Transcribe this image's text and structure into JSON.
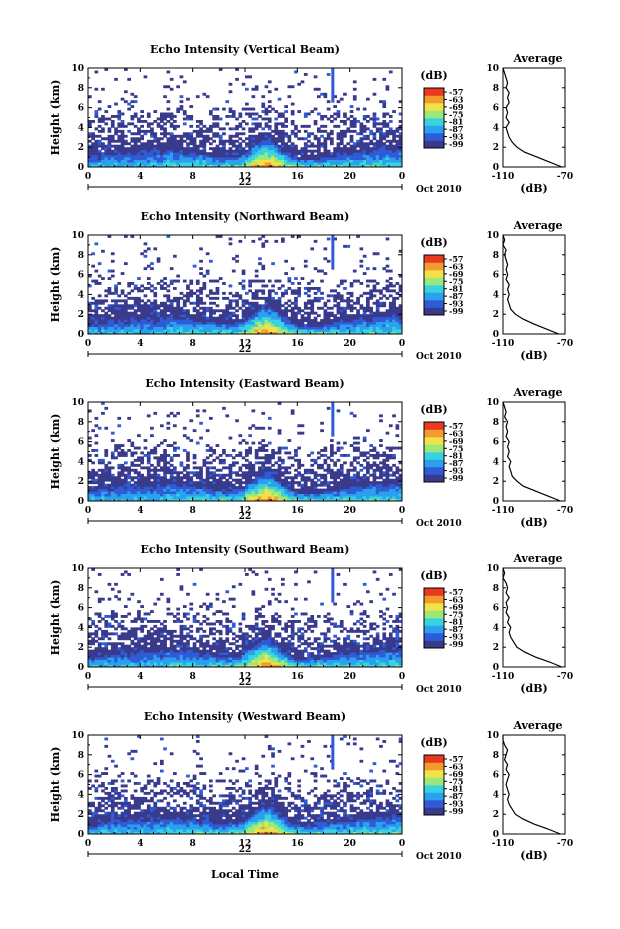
{
  "xlabel_bottom": "Local Time",
  "date_label": "Oct 2010",
  "date_day": "22",
  "avg_title": "Average",
  "avg_xlabel": "(dB)",
  "colorbar_unit": "(dB)",
  "colorbar_ticks": [
    "-57",
    "-63",
    "-69",
    "-75",
    "-81",
    "-87",
    "-93",
    "-99"
  ],
  "colorbar_colors": [
    "#3a3a8c",
    "#2f5bd6",
    "#2aa0ee",
    "#39d3e0",
    "#9be87a",
    "#f2e24a",
    "#f59a2d",
    "#e83a1f"
  ],
  "chart_data": [
    {
      "type": "heatmap",
      "title": "Echo Intensity (Vertical Beam)",
      "ylabel": "Height (km)",
      "xlim": [
        0,
        24
      ],
      "ylim": [
        0,
        10
      ],
      "xticks": [
        "0",
        "4",
        "8",
        "12",
        "16",
        "20",
        "0"
      ],
      "yticks": [
        "0",
        "2",
        "4",
        "6",
        "8",
        "10"
      ],
      "avg_profile": {
        "xlim": [
          -110,
          -70
        ],
        "xticks": [
          "-110",
          "-70"
        ],
        "height": [
          0,
          0.5,
          1,
          1.5,
          2,
          2.5,
          3,
          3.5,
          4,
          4.5,
          5,
          5.5,
          6,
          6.5,
          7,
          7.5,
          8,
          8.5,
          9,
          9.5,
          10
        ],
        "value": [
          -72,
          -80,
          -88,
          -96,
          -101,
          -104,
          -106,
          -107,
          -108,
          -106,
          -108,
          -107,
          -108,
          -106,
          -107,
          -106,
          -108,
          -107,
          -108,
          -109,
          -110
        ]
      }
    },
    {
      "type": "heatmap",
      "title": "Echo Intensity (Northward Beam)",
      "ylabel": "Height (km)",
      "xlim": [
        0,
        24
      ],
      "ylim": [
        0,
        10
      ],
      "xticks": [
        "0",
        "4",
        "8",
        "12",
        "16",
        "20",
        "0"
      ],
      "yticks": [
        "0",
        "2",
        "4",
        "6",
        "8",
        "10"
      ],
      "avg_profile": {
        "xlim": [
          -110,
          -70
        ],
        "xticks": [
          "-110",
          "-70"
        ],
        "height": [
          0,
          0.5,
          1,
          1.5,
          2,
          2.5,
          3,
          3.5,
          4,
          4.5,
          5,
          5.5,
          6,
          6.5,
          7,
          7.5,
          8,
          8.5,
          9,
          9.5,
          10
        ],
        "value": [
          -74,
          -82,
          -90,
          -97,
          -102,
          -105,
          -106,
          -107,
          -106,
          -107,
          -106,
          -108,
          -107,
          -108,
          -107,
          -108,
          -109,
          -108,
          -110,
          -109,
          -110
        ]
      }
    },
    {
      "type": "heatmap",
      "title": "Echo Intensity (Eastward Beam)",
      "ylabel": "Height (km)",
      "xlim": [
        0,
        24
      ],
      "ylim": [
        0,
        10
      ],
      "xticks": [
        "0",
        "4",
        "8",
        "12",
        "16",
        "20",
        "0"
      ],
      "yticks": [
        "0",
        "2",
        "4",
        "6",
        "8",
        "10"
      ],
      "avg_profile": {
        "xlim": [
          -110,
          -70
        ],
        "xticks": [
          "-110",
          "-70"
        ],
        "height": [
          0,
          0.5,
          1,
          1.5,
          2,
          2.5,
          3,
          3.5,
          4,
          4.5,
          5,
          5.5,
          6,
          6.5,
          7,
          7.5,
          8,
          8.5,
          9,
          9.5,
          10
        ],
        "value": [
          -73,
          -81,
          -89,
          -97,
          -101,
          -104,
          -105,
          -106,
          -105,
          -107,
          -106,
          -107,
          -106,
          -108,
          -107,
          -108,
          -107,
          -109,
          -108,
          -109,
          -110
        ]
      }
    },
    {
      "type": "heatmap",
      "title": "Echo Intensity (Southward Beam)",
      "ylabel": "Height (km)",
      "xlim": [
        0,
        24
      ],
      "ylim": [
        0,
        10
      ],
      "xticks": [
        "0",
        "4",
        "8",
        "12",
        "16",
        "20",
        "0"
      ],
      "yticks": [
        "0",
        "2",
        "4",
        "6",
        "8",
        "10"
      ],
      "avg_profile": {
        "xlim": [
          -110,
          -70
        ],
        "xticks": [
          "-110",
          "-70"
        ],
        "height": [
          0,
          0.5,
          1,
          1.5,
          2,
          2.5,
          3,
          3.5,
          4,
          4.5,
          5,
          5.5,
          6,
          6.5,
          7,
          7.5,
          8,
          8.5,
          9,
          9.5,
          10
        ],
        "value": [
          -72,
          -80,
          -89,
          -96,
          -101,
          -103,
          -105,
          -106,
          -105,
          -107,
          -106,
          -108,
          -107,
          -108,
          -106,
          -108,
          -107,
          -108,
          -110,
          -109,
          -110
        ]
      }
    },
    {
      "type": "heatmap",
      "title": "Echo Intensity (Westward Beam)",
      "ylabel": "Height (km)",
      "xlim": [
        0,
        24
      ],
      "ylim": [
        0,
        10
      ],
      "xticks": [
        "0",
        "4",
        "8",
        "12",
        "16",
        "20",
        "0"
      ],
      "yticks": [
        "0",
        "2",
        "4",
        "6",
        "8",
        "10"
      ],
      "avg_profile": {
        "xlim": [
          -110,
          -70
        ],
        "xticks": [
          "-110",
          "-70"
        ],
        "height": [
          0,
          0.5,
          1,
          1.5,
          2,
          2.5,
          3,
          3.5,
          4,
          4.5,
          5,
          5.5,
          6,
          6.5,
          7,
          7.5,
          8,
          8.5,
          9,
          9.5,
          10
        ],
        "value": [
          -73,
          -81,
          -90,
          -97,
          -102,
          -104,
          -106,
          -107,
          -106,
          -107,
          -108,
          -107,
          -106,
          -108,
          -107,
          -109,
          -108,
          -107,
          -109,
          -110,
          -110
        ]
      }
    }
  ]
}
